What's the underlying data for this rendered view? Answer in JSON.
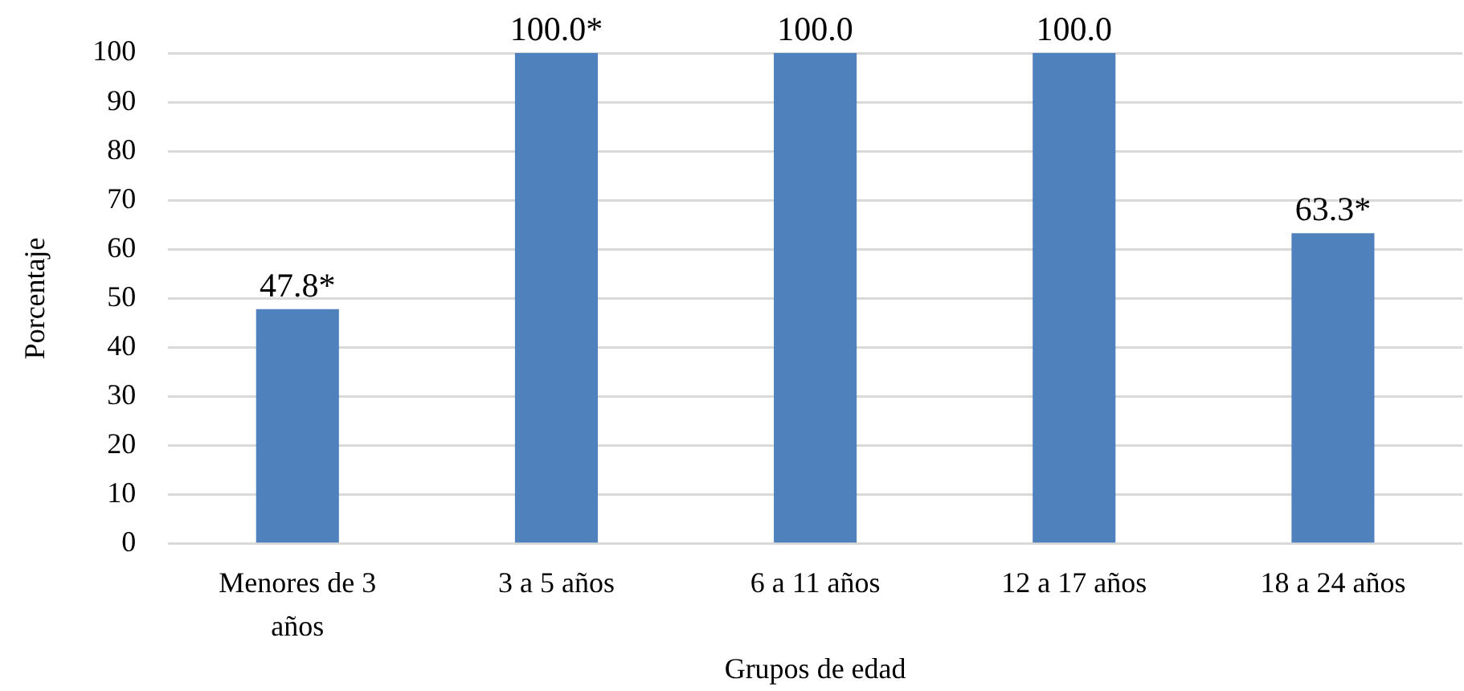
{
  "chart_data": {
    "type": "bar",
    "xlabel": "Grupos de edad",
    "ylabel": "Porcentaje",
    "categories": [
      "Menores de 3 años",
      "3 a 5 años",
      "6 a 11 años",
      "12 a 17 años",
      "18 a 24 años"
    ],
    "values": [
      47.8,
      100.0,
      100.0,
      100.0,
      63.3
    ],
    "value_labels": [
      "47.8*",
      "100.0*",
      "100.0",
      "100.0",
      "63.3*"
    ],
    "color": "#4f81bd",
    "ylim": [
      0,
      100
    ],
    "yticks": [
      0,
      10,
      20,
      30,
      40,
      50,
      60,
      70,
      80,
      90,
      100
    ],
    "grid": "y"
  }
}
